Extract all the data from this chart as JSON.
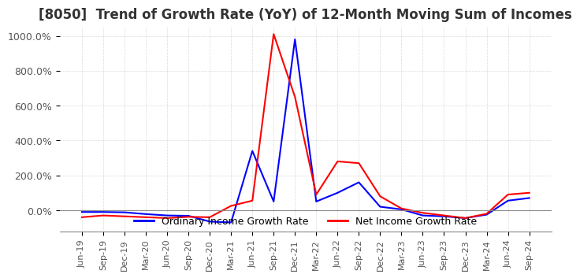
{
  "title": "[8050]  Trend of Growth Rate (YoY) of 12-Month Moving Sum of Incomes",
  "title_fontsize": 12,
  "ylim": [
    -120,
    1050
  ],
  "yticks": [
    0,
    200,
    400,
    600,
    800,
    1000
  ],
  "yticklabels": [
    "0.0%",
    "200.0%",
    "400.0%",
    "600.0%",
    "800.0%",
    "1000.0%"
  ],
  "background_color": "#ffffff",
  "grid_color": "#aaaaaa",
  "legend_labels": [
    "Ordinary Income Growth Rate",
    "Net Income Growth Rate"
  ],
  "legend_colors": [
    "#0000ff",
    "#ff0000"
  ],
  "x_labels": [
    "Jun-19",
    "Sep-19",
    "Dec-19",
    "Mar-20",
    "Jun-20",
    "Sep-20",
    "Dec-20",
    "Mar-21",
    "Jun-21",
    "Sep-21",
    "Dec-21",
    "Mar-22",
    "Jun-22",
    "Sep-22",
    "Dec-22",
    "Mar-23",
    "Jun-23",
    "Sep-23",
    "Dec-23",
    "Mar-24",
    "Jun-24",
    "Sep-24"
  ],
  "ordinary_income": [
    -10,
    -10,
    -12,
    -22,
    -30,
    -32,
    -65,
    -70,
    340,
    50,
    980,
    50,
    100,
    160,
    20,
    5,
    -30,
    -35,
    -45,
    -25,
    55,
    70
  ],
  "net_income": [
    -40,
    -30,
    -35,
    -40,
    -45,
    -38,
    -40,
    25,
    55,
    1010,
    650,
    90,
    280,
    270,
    80,
    10,
    -15,
    -30,
    -45,
    -20,
    90,
    100
  ]
}
